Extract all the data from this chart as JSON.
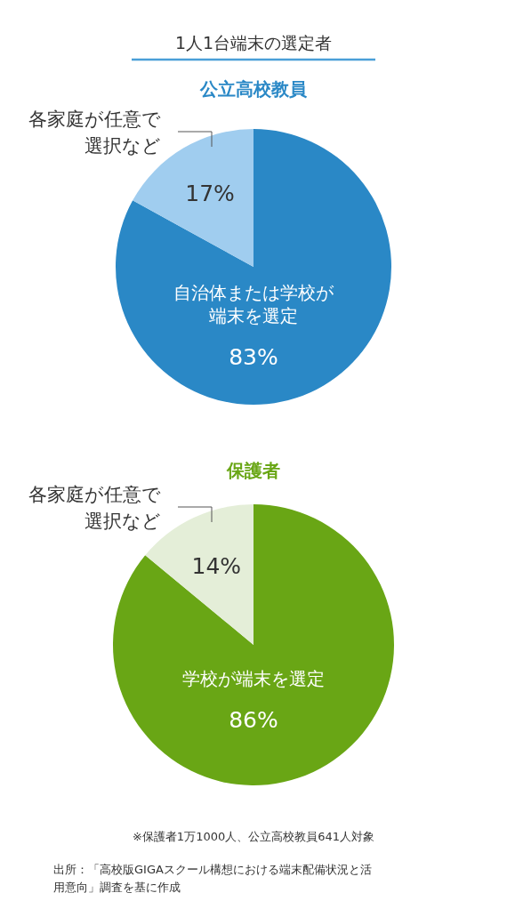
{
  "chart_data": [
    {
      "type": "pie",
      "title": "1人1台端末の選定者",
      "subtitle": "公立高校教員",
      "categories": [
        "自治体または学校が端末を選定",
        "各家庭が任意で選択など"
      ],
      "values": [
        83,
        17
      ],
      "colors": [
        "#2a88c6",
        "#a0cdef"
      ],
      "value_labels": [
        "83%",
        "17%"
      ]
    },
    {
      "type": "pie",
      "title": "保護者",
      "categories": [
        "学校が端末を選定",
        "各家庭が任意で選択など"
      ],
      "values": [
        86,
        14
      ],
      "colors": [
        "#69a615",
        "#e4eed8"
      ],
      "value_labels": [
        "86%",
        "14%"
      ],
      "annotations": [
        "※保護者1万1000人、公立高校教員641人対象",
        "出所：「高校版GIGAスクール構想における端末配備状況と活用意向」調査を基に作成"
      ]
    }
  ]
}
